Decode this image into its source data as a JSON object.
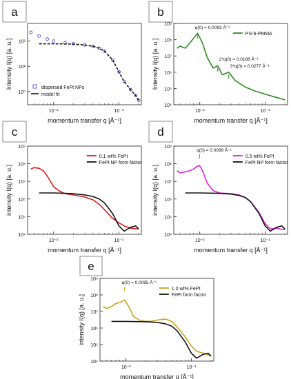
{
  "chart_data": [
    {
      "panel_label": "a",
      "type": "line",
      "xlabel": "momentum transfer q [Å⁻¹]",
      "ylabel": "Intensity I(q) [a. u.]",
      "xscale": "log",
      "yscale": "log",
      "xlim": [
        0.004,
        0.22
      ],
      "ylim": [
        0.3,
        500
      ],
      "x_ticks": [
        0.01,
        0.1
      ],
      "x_tick_labels": [
        "10⁻²",
        "10⁻¹"
      ],
      "y_ticks": [
        1,
        10,
        100
      ],
      "y_tick_labels": [
        "10⁰",
        "10¹",
        "10²"
      ],
      "legend_position": "bottom-left",
      "series": [
        {
          "name": "dispersed FePt NPs",
          "style": "markers",
          "color": "#3b3bd0",
          "x": [
            0.0045,
            0.006,
            0.008,
            0.01,
            0.015,
            0.02,
            0.03,
            0.04,
            0.05,
            0.06,
            0.08,
            0.1,
            0.12,
            0.15,
            0.18,
            0.2
          ],
          "y": [
            220,
            160,
            120,
            100,
            85,
            78,
            70,
            62,
            52,
            40,
            18,
            6,
            2.5,
            1.2,
            0.7,
            0.45
          ]
        },
        {
          "name": "model fit",
          "style": "line",
          "color": "#111111",
          "x": [
            0.006,
            0.008,
            0.01,
            0.015,
            0.02,
            0.03,
            0.04,
            0.05,
            0.06,
            0.08,
            0.1,
            0.12,
            0.15,
            0.18,
            0.2
          ],
          "y": [
            78,
            78,
            78,
            77,
            76,
            70,
            62,
            52,
            40,
            18,
            6,
            2.5,
            1.2,
            0.7,
            0.45
          ]
        }
      ]
    },
    {
      "panel_label": "b",
      "type": "line",
      "xlabel": "momentum transfer q [Å⁻¹]",
      "ylabel": "Intensity I(q) [a. u.]",
      "xscale": "log",
      "yscale": "log",
      "xlim": [
        0.004,
        0.22
      ],
      "ylim": [
        10000,
        1000000000
      ],
      "x_ticks": [
        0.01,
        0.1
      ],
      "x_tick_labels": [
        "10⁻²",
        "10⁻¹"
      ],
      "y_ticks": [
        10000,
        100000,
        1000000,
        10000000,
        100000000,
        1000000000
      ],
      "y_tick_labels": [
        "10⁴",
        "10⁵",
        "10⁶",
        "10⁷",
        "10⁸",
        "10⁹"
      ],
      "legend_position": "top-right",
      "annotations": [
        "q(0) = 0.0093 Å⁻¹",
        "2*q(0) = 0.0188 Å⁻¹",
        "3*q(0) = 0.0277 Å⁻¹"
      ],
      "annotation_q": [
        0.0093,
        0.0188,
        0.0277
      ],
      "series": [
        {
          "name": "PS-b-PMMA",
          "style": "line",
          "color": "#2e8b22",
          "x": [
            0.0045,
            0.005,
            0.006,
            0.007,
            0.008,
            0.0093,
            0.011,
            0.013,
            0.016,
            0.0188,
            0.022,
            0.0277,
            0.035,
            0.05,
            0.07,
            0.1,
            0.14,
            0.2
          ],
          "y": [
            30000000,
            40000000,
            30000000,
            60000000,
            120000000,
            250000000,
            60000000,
            8000000,
            1800000,
            2500000,
            700000,
            1000000,
            300000,
            120000,
            70000,
            45000,
            30000,
            20000
          ]
        }
      ]
    },
    {
      "panel_label": "c",
      "type": "line",
      "xlabel": "momentum transfer q [Å⁻¹]",
      "ylabel": "intensity I(q) [a. u.]",
      "xscale": "log",
      "yscale": "log",
      "xlim": [
        0.004,
        0.22
      ],
      "ylim": [
        10000,
        1000000000
      ],
      "x_ticks": [
        0.01,
        0.1
      ],
      "x_tick_labels": [
        "10⁻²",
        "10⁻¹"
      ],
      "y_ticks": [
        10000,
        100000,
        1000000,
        10000000,
        100000000,
        1000000000
      ],
      "y_tick_labels": [
        "10⁴",
        "10⁵",
        "10⁶",
        "10⁷",
        "10⁸",
        "10⁹"
      ],
      "legend_position": "top-right",
      "series": [
        {
          "name": "0.1 wt% FePt",
          "style": "line",
          "color": "#dd1c1c",
          "x": [
            0.0045,
            0.005,
            0.006,
            0.007,
            0.008,
            0.01,
            0.012,
            0.015,
            0.02,
            0.03,
            0.04,
            0.05,
            0.06,
            0.08,
            0.1,
            0.12,
            0.15,
            0.2
          ],
          "y": [
            50000000,
            60000000,
            55000000,
            40000000,
            20000000,
            5000000,
            3000000,
            2000000,
            1700000,
            1300000,
            900000,
            500000,
            250000,
            80000,
            45000,
            30000,
            22000,
            20000
          ]
        },
        {
          "name": "FePt NP form factor",
          "style": "line",
          "color": "#111111",
          "x": [
            0.006,
            0.008,
            0.01,
            0.015,
            0.02,
            0.03,
            0.04,
            0.05,
            0.06,
            0.08,
            0.1,
            0.12,
            0.15,
            0.18,
            0.2
          ],
          "y": [
            2200000,
            2200000,
            2200000,
            2100000,
            2000000,
            1700000,
            1400000,
            1000000,
            600000,
            150000,
            30000,
            15000,
            25000,
            30000,
            20000
          ]
        }
      ]
    },
    {
      "panel_label": "d",
      "type": "line",
      "xlabel": "momentum transfer q [Å⁻¹]",
      "ylabel": "intensity I(q) [a. u.]",
      "xscale": "log",
      "yscale": "log",
      "xlim": [
        0.004,
        0.22
      ],
      "ylim": [
        10000,
        1000000000
      ],
      "x_ticks": [
        0.01,
        0.1
      ],
      "x_tick_labels": [
        "10⁻²",
        "10⁻¹"
      ],
      "y_ticks": [
        10000,
        100000,
        1000000,
        10000000,
        100000000,
        1000000000
      ],
      "y_tick_labels": [
        "10⁴",
        "10⁵",
        "10⁶",
        "10⁷",
        "10⁸",
        "10⁹"
      ],
      "legend_position": "top-right",
      "annotations": [
        "q(0) = 0.0099 Å⁻¹"
      ],
      "annotation_q": [
        0.0099
      ],
      "series": [
        {
          "name": "0.5 wt% FePt",
          "style": "line",
          "color": "#e020d8",
          "x": [
            0.0045,
            0.005,
            0.006,
            0.007,
            0.008,
            0.009,
            0.0099,
            0.011,
            0.013,
            0.016,
            0.02,
            0.03,
            0.04,
            0.05,
            0.06,
            0.08,
            0.1,
            0.12,
            0.15,
            0.2
          ],
          "y": [
            40000000,
            30000000,
            35000000,
            40000000,
            50000000,
            70000000,
            80000000,
            40000000,
            8000000,
            3000000,
            2200000,
            2000000,
            1700000,
            1200000,
            700000,
            180000,
            40000,
            20000,
            22000,
            18000
          ]
        },
        {
          "name": "FePt NP form factor",
          "style": "line",
          "color": "#111111",
          "x": [
            0.006,
            0.008,
            0.01,
            0.015,
            0.02,
            0.03,
            0.04,
            0.05,
            0.06,
            0.08,
            0.1,
            0.12,
            0.15,
            0.18,
            0.2
          ],
          "y": [
            2200000,
            2200000,
            2200000,
            2150000,
            2100000,
            1900000,
            1600000,
            1200000,
            700000,
            160000,
            30000,
            15000,
            25000,
            30000,
            20000
          ]
        }
      ]
    },
    {
      "panel_label": "e",
      "type": "line",
      "xlabel": "momentum transfer q [Å⁻¹]",
      "ylabel": "intensity I(q) [a. u.]",
      "xscale": "log",
      "yscale": "log",
      "xlim": [
        0.004,
        0.22
      ],
      "ylim": [
        10000,
        1000000000
      ],
      "x_ticks": [
        0.01,
        0.1
      ],
      "x_tick_labels": [
        "10⁻²",
        "10⁻¹"
      ],
      "y_ticks": [
        10000,
        100000,
        1000000,
        10000000,
        100000000,
        1000000000
      ],
      "y_tick_labels": [
        "10⁴",
        "10⁵",
        "10⁶",
        "10⁷",
        "10⁸",
        "10⁹"
      ],
      "legend_position": "top-right",
      "annotations": [
        "q(0) = 0.0095 Å⁻¹"
      ],
      "annotation_q": [
        0.0095
      ],
      "series": [
        {
          "name": "1.0 wt% FePt",
          "style": "line",
          "color": "#c8a21a",
          "x": [
            0.0045,
            0.005,
            0.006,
            0.007,
            0.008,
            0.0095,
            0.011,
            0.013,
            0.016,
            0.02,
            0.025,
            0.03,
            0.04,
            0.05,
            0.06,
            0.08,
            0.1,
            0.12,
            0.15,
            0.2
          ],
          "y": [
            20000000,
            15000000,
            20000000,
            30000000,
            35000000,
            50000000,
            20000000,
            5000000,
            3000000,
            2500000,
            2600000,
            3000000,
            3500000,
            2500000,
            1200000,
            300000,
            80000,
            40000,
            30000,
            20000
          ]
        },
        {
          "name": "FePt form factor",
          "style": "line",
          "color": "#111111",
          "x": [
            0.006,
            0.008,
            0.01,
            0.015,
            0.02,
            0.03,
            0.04,
            0.05,
            0.06,
            0.08,
            0.1,
            0.12,
            0.15,
            0.18,
            0.2
          ],
          "y": [
            2500000,
            2500000,
            2500000,
            2450000,
            2400000,
            2200000,
            1800000,
            1300000,
            700000,
            150000,
            30000,
            15000,
            25000,
            30000,
            20000
          ]
        }
      ]
    }
  ]
}
